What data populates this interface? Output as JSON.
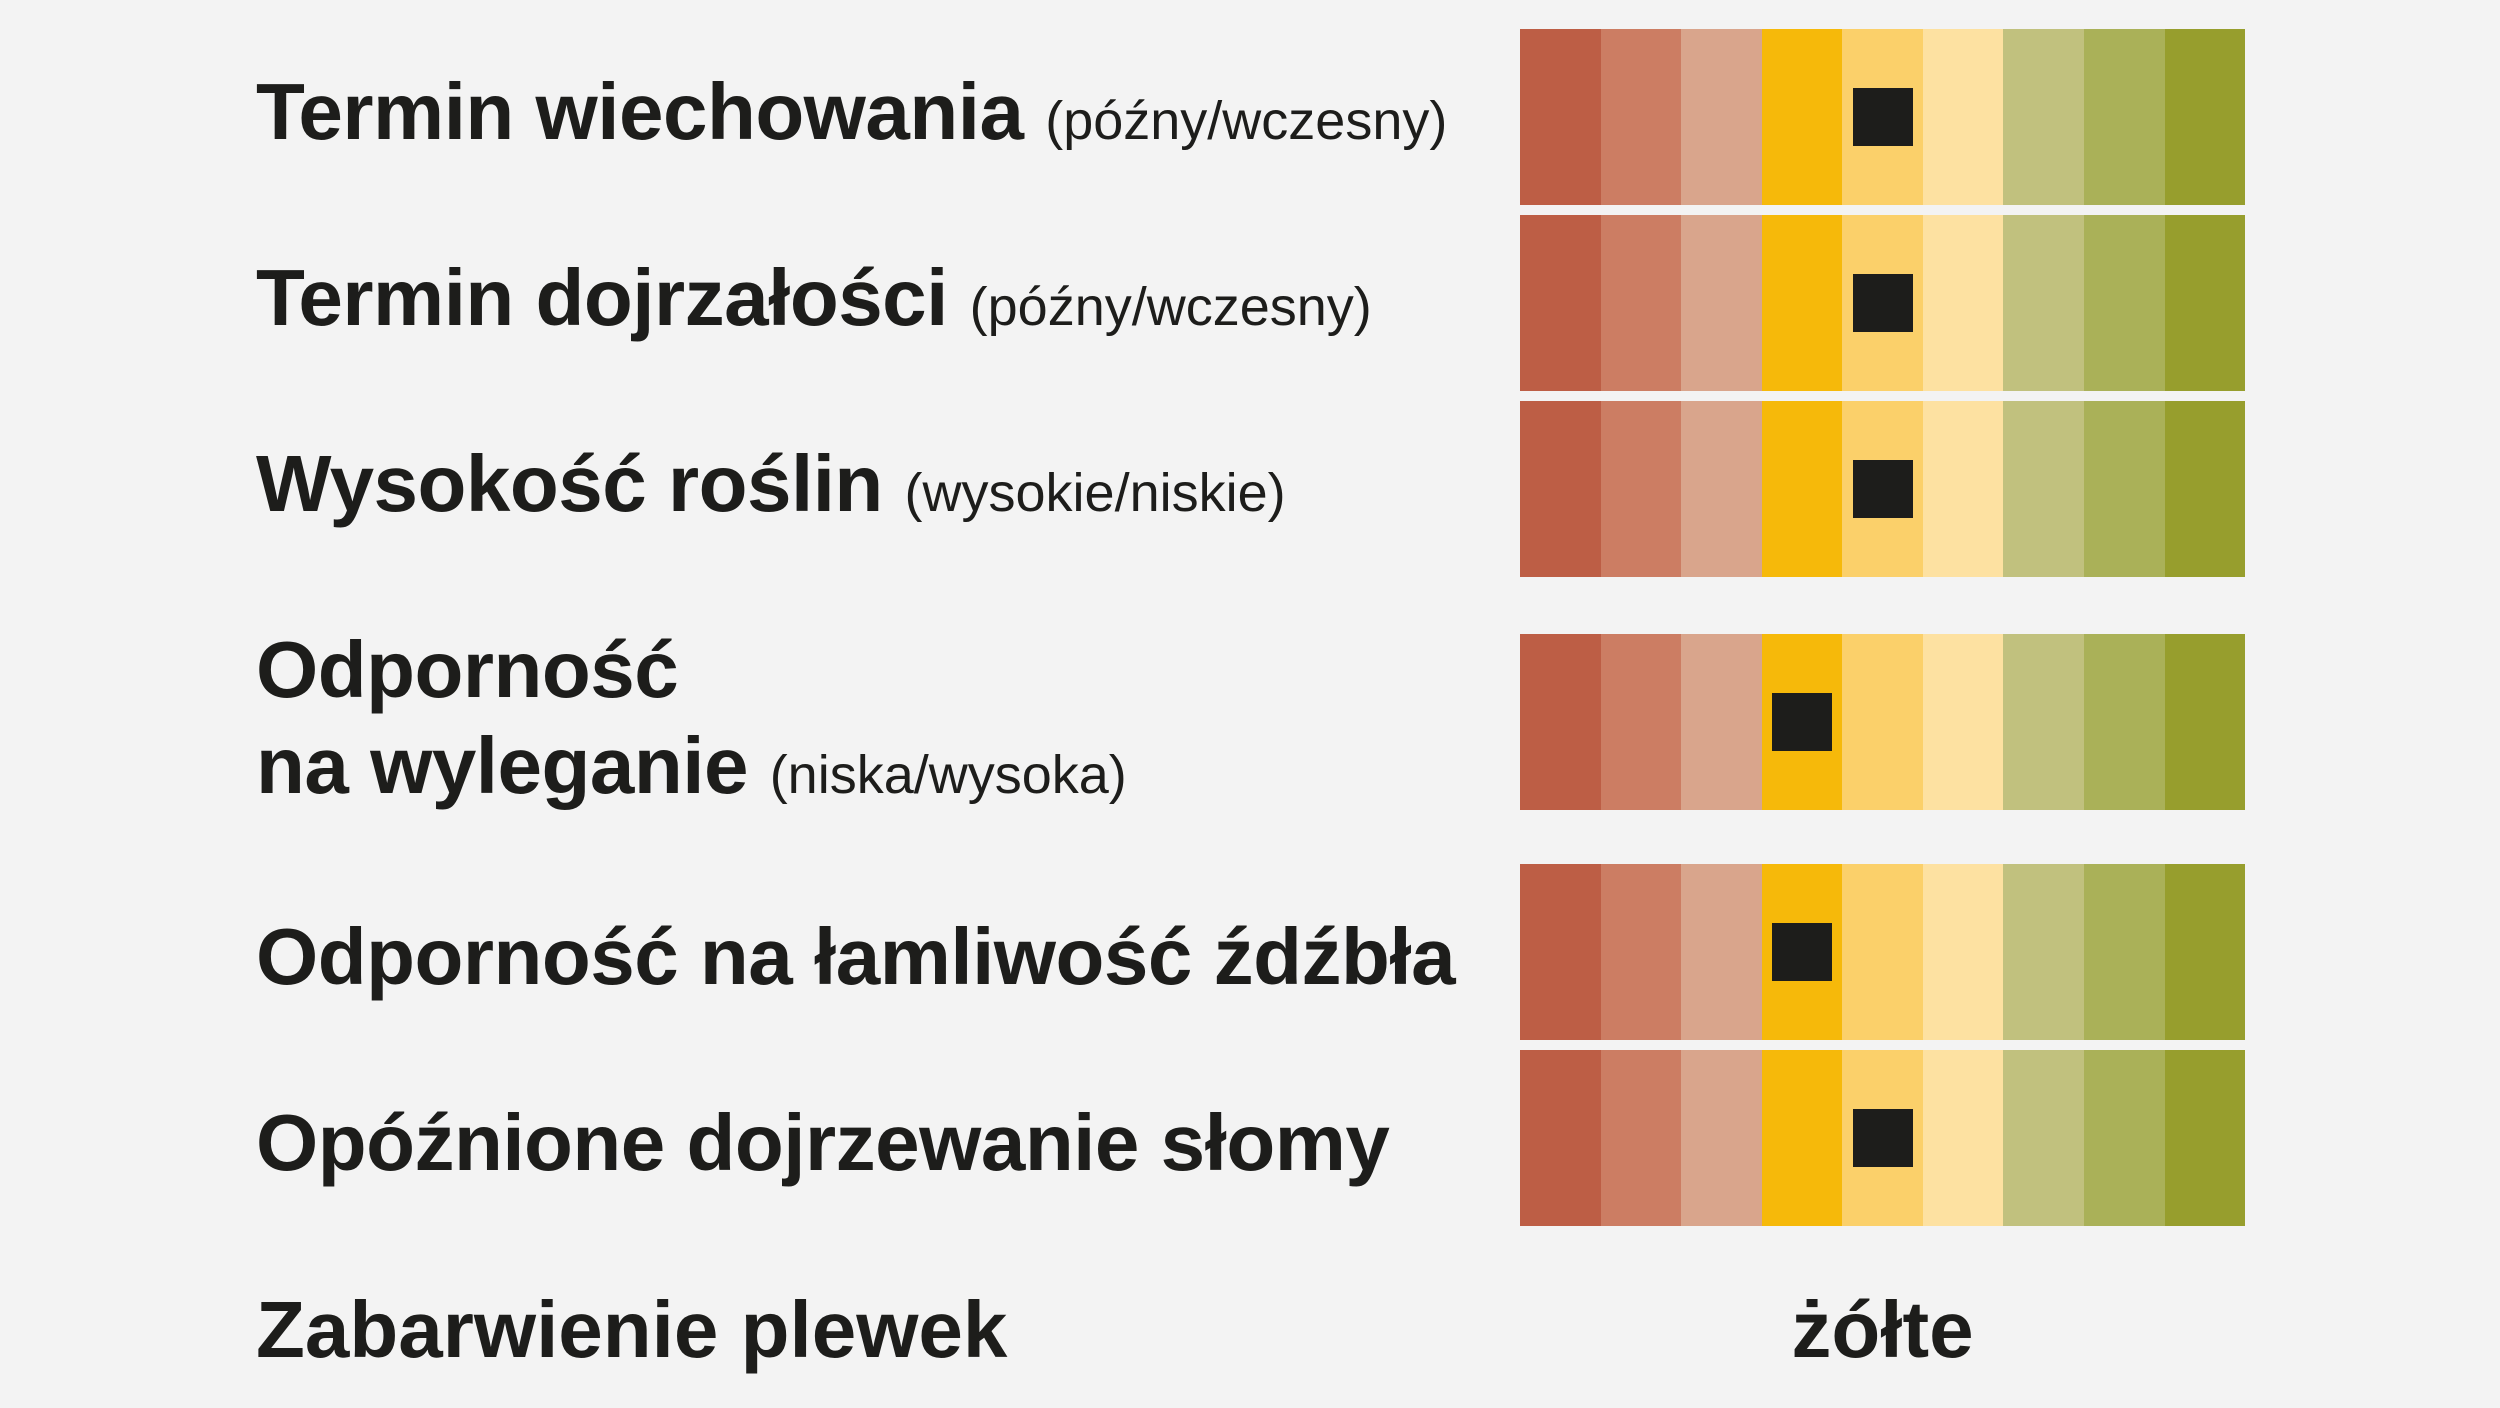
{
  "chart_data": {
    "type": "table",
    "scale_colors": [
      "#bd5e45",
      "#cc7d63",
      "#d9a58c",
      "#f6b90a",
      "#fbd06a",
      "#fde1a1",
      "#c1c17e",
      "#aab158",
      "#979e2d"
    ],
    "scale_min": 1,
    "scale_max": 9,
    "rows": [
      {
        "label": "Termin wiechowania",
        "sub": "(późny/wczesny)",
        "value": 5
      },
      {
        "label": "Termin dojrzałości",
        "sub": "(późny/wczesny)",
        "value": 5
      },
      {
        "label": "Wysokość roślin",
        "sub": "(wysokie/niskie)",
        "value": 5
      },
      {
        "label": "Odporność",
        "label2": "na wyleganie",
        "sub": "(niska/wysoka)",
        "value": 4
      },
      {
        "label": "Odporność na łamliwość źdźbła",
        "sub": "",
        "value": 4
      },
      {
        "label": "Opóźnione dojrzewanie słomy",
        "sub": "",
        "value": 5
      }
    ],
    "footer": {
      "label": "Zabarwienie plewek",
      "value": "żółte"
    }
  }
}
